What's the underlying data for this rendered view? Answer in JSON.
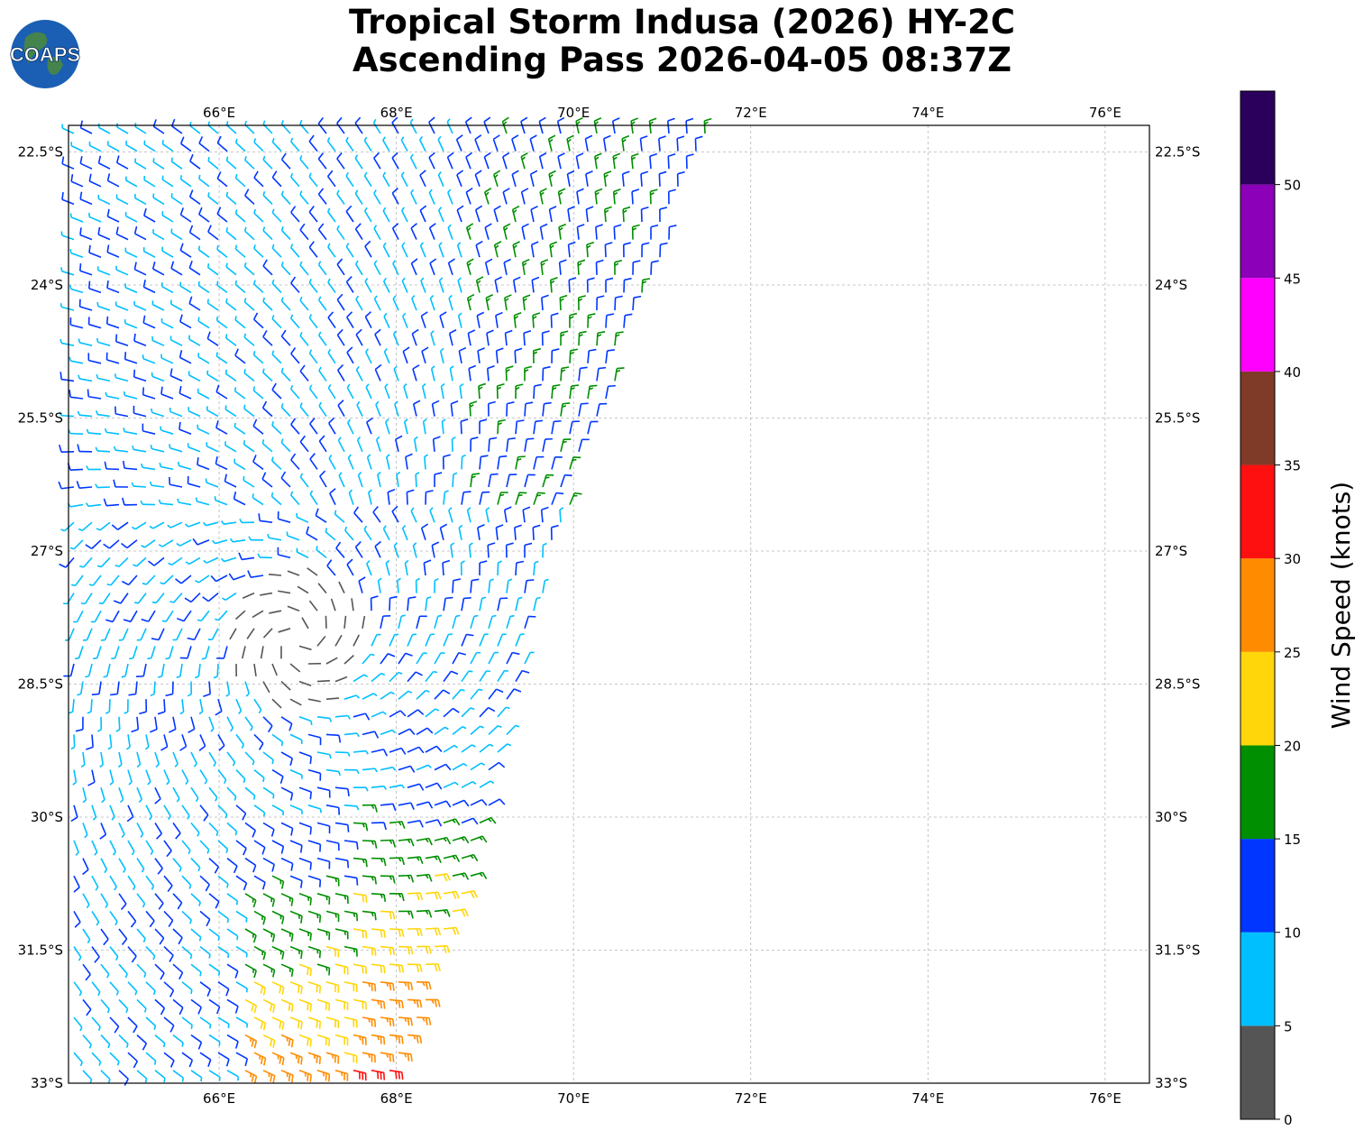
{
  "title": {
    "line1": "Tropical Storm Indusa (2026) HY-2C",
    "line2": "Ascending Pass 2026-04-05 08:37Z"
  },
  "logo": {
    "text": "COAPS",
    "icon": "globe-icon"
  },
  "map": {
    "lon_ticks": [
      {
        "value": 66,
        "label": "66°E"
      },
      {
        "value": 68,
        "label": "68°E"
      },
      {
        "value": 70,
        "label": "70°E"
      },
      {
        "value": 72,
        "label": "72°E"
      },
      {
        "value": 74,
        "label": "74°E"
      },
      {
        "value": 76,
        "label": "76°E"
      }
    ],
    "lat_ticks": [
      {
        "value": -22.5,
        "label": "22.5°S"
      },
      {
        "value": -24,
        "label": "24°S"
      },
      {
        "value": -25.5,
        "label": "25.5°S"
      },
      {
        "value": -27,
        "label": "27°S"
      },
      {
        "value": -28.5,
        "label": "28.5°S"
      },
      {
        "value": -30,
        "label": "30°S"
      },
      {
        "value": -31.5,
        "label": "31.5°S"
      },
      {
        "value": -33,
        "label": "33°S"
      }
    ],
    "lon_range": [
      64.3,
      76.5
    ],
    "lat_range": [
      -33,
      -22.2
    ],
    "storm_center": {
      "lon": 66.9,
      "lat": -28.0
    },
    "gridlines": true
  },
  "colorbar": {
    "label": "Wind Speed (knots)",
    "ticks": [
      "0",
      "5",
      "10",
      "15",
      "20",
      "25",
      "30",
      "35",
      "40",
      "45",
      "50"
    ],
    "bins": [
      {
        "min": 0,
        "max": 5,
        "color": "#555555"
      },
      {
        "min": 5,
        "max": 10,
        "color": "#00bfff"
      },
      {
        "min": 10,
        "max": 15,
        "color": "#0036ff"
      },
      {
        "min": 15,
        "max": 20,
        "color": "#008f00"
      },
      {
        "min": 20,
        "max": 25,
        "color": "#ffd60a"
      },
      {
        "min": 25,
        "max": 30,
        "color": "#ff8c00"
      },
      {
        "min": 30,
        "max": 35,
        "color": "#ff1010"
      },
      {
        "min": 35,
        "max": 40,
        "color": "#7f3a28"
      },
      {
        "min": 40,
        "max": 45,
        "color": "#ff00ff"
      },
      {
        "min": 45,
        "max": 50,
        "color": "#8b00b8"
      },
      {
        "min": 50,
        "max": 55,
        "color": "#2a005c"
      }
    ]
  }
}
